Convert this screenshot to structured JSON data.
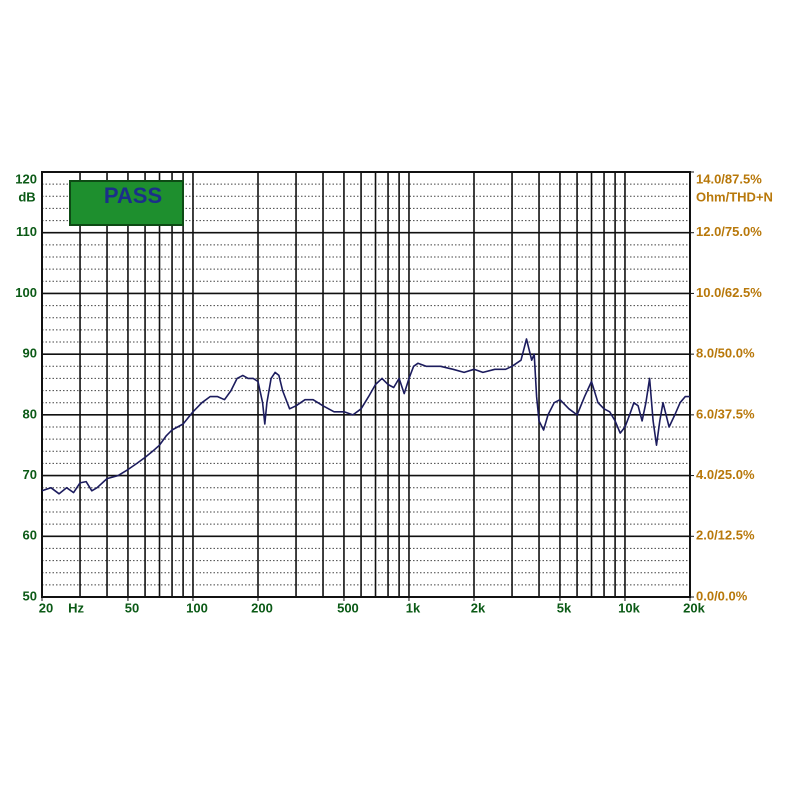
{
  "chart_data": {
    "type": "line",
    "title_badge": "PASS",
    "y_label": "dB",
    "x_label": "Hz",
    "y2_label": "Ohm/THD+N",
    "x_log": true,
    "xlim": [
      20,
      20000
    ],
    "xticks": [
      20,
      50,
      100,
      200,
      500,
      {
        "value": 1000,
        "label": "1k"
      },
      {
        "value": 2000,
        "label": "2k"
      },
      {
        "value": 5000,
        "label": "5k"
      },
      {
        "value": 10000,
        "label": "10k"
      },
      {
        "value": 20000,
        "label": "20k"
      }
    ],
    "xgrid": [
      20,
      30,
      40,
      50,
      60,
      70,
      80,
      90,
      100,
      200,
      300,
      400,
      500,
      600,
      700,
      800,
      900,
      1000,
      2000,
      3000,
      4000,
      5000,
      6000,
      7000,
      8000,
      9000,
      10000,
      20000
    ],
    "ylim": [
      50,
      120
    ],
    "yticks": [
      50,
      60,
      70,
      80,
      90,
      100,
      110,
      120
    ],
    "yminor": [
      52,
      54,
      56,
      58,
      62,
      64,
      66,
      68,
      72,
      74,
      76,
      78,
      82,
      84,
      86,
      88,
      92,
      94,
      96,
      98,
      102,
      104,
      106,
      108,
      112,
      114,
      116,
      118
    ],
    "y2lim": [
      0,
      14
    ],
    "y2ticks": [
      {
        "value": 0,
        "label": "0.0/0.0%"
      },
      {
        "value": 2,
        "label": "2.0/12.5%"
      },
      {
        "value": 4,
        "label": "4.0/25.0%"
      },
      {
        "value": 6,
        "label": "6.0/37.5%"
      },
      {
        "value": 8,
        "label": "8.0/50.0%"
      },
      {
        "value": 10,
        "label": "10.0/62.5%"
      },
      {
        "value": 12,
        "label": "12.0/75.0%"
      },
      {
        "value": 14,
        "label": "14.0/87.5%"
      }
    ],
    "x": [
      20,
      22,
      24,
      26,
      28,
      30,
      32,
      34,
      36,
      40,
      45,
      50,
      55,
      60,
      65,
      70,
      75,
      80,
      90,
      100,
      110,
      120,
      130,
      140,
      150,
      160,
      170,
      180,
      190,
      200,
      210,
      215,
      220,
      230,
      240,
      250,
      260,
      280,
      300,
      330,
      360,
      400,
      450,
      500,
      550,
      600,
      650,
      700,
      750,
      800,
      850,
      900,
      950,
      1000,
      1050,
      1100,
      1200,
      1400,
      1600,
      1800,
      2000,
      2200,
      2500,
      2800,
      3000,
      3300,
      3500,
      3700,
      3800,
      3900,
      4000,
      4200,
      4400,
      4700,
      5000,
      5500,
      6000,
      6500,
      7000,
      7500,
      8000,
      8500,
      9000,
      9500,
      10000,
      10500,
      11000,
      11500,
      12000,
      12500,
      13000,
      13500,
      14000,
      14500,
      15000,
      16000,
      17000,
      18000,
      19000,
      20000
    ],
    "series": [
      {
        "color": "#1c1c5e",
        "values": [
          67.5,
          68,
          67,
          68,
          67.2,
          68.8,
          69,
          67.5,
          68,
          69.5,
          70,
          71,
          72,
          73,
          74,
          75,
          76.5,
          77.5,
          78.5,
          80.5,
          82,
          83,
          83,
          82.5,
          84,
          86,
          86.5,
          86,
          86,
          85.5,
          82,
          78.5,
          82,
          86,
          87,
          86.5,
          84,
          81,
          81.5,
          82.5,
          82.5,
          81.5,
          80.5,
          80.5,
          80,
          81,
          83,
          85,
          86,
          85,
          84.5,
          86,
          83.5,
          86,
          88,
          88.5,
          88,
          88,
          87.5,
          87,
          87.5,
          87,
          87.5,
          87.5,
          88,
          89,
          92.5,
          89,
          90,
          83,
          79,
          77.5,
          80,
          82,
          82.5,
          81,
          80,
          83,
          85.5,
          82,
          81,
          80.5,
          79,
          77,
          78,
          80,
          82,
          81.5,
          79,
          82,
          86,
          79,
          75,
          79,
          82,
          78,
          80,
          82,
          83,
          83
        ]
      }
    ]
  }
}
